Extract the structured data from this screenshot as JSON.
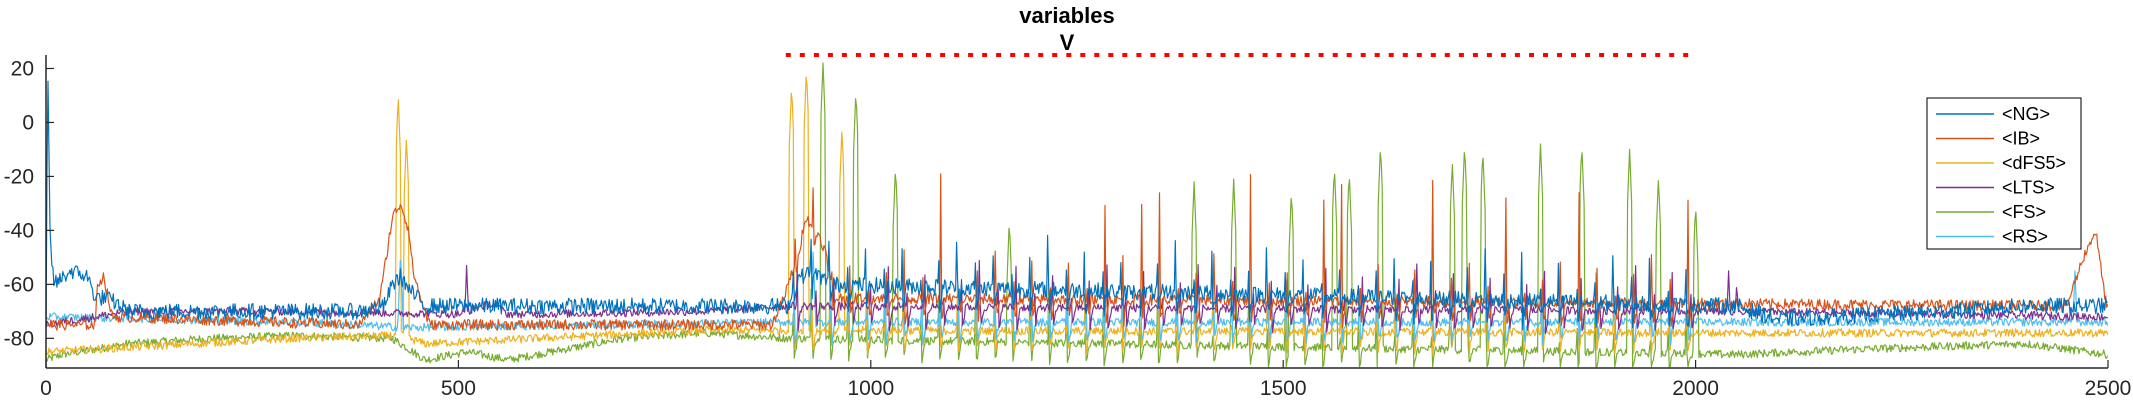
{
  "chart_data": {
    "type": "line",
    "title": "variables",
    "subtitle": "V",
    "xlabel": "",
    "ylabel": "",
    "xlim": [
      0,
      2500
    ],
    "ylim": [
      -91,
      25
    ],
    "x_ticks": [
      0,
      500,
      1000,
      1500,
      2000,
      2500
    ],
    "x_tick_labels": [
      "0",
      "500",
      "1000",
      "1500",
      "2000",
      "2500"
    ],
    "y_ticks": [
      -80,
      -60,
      -40,
      -20,
      0,
      20
    ],
    "y_tick_labels": [
      "-80",
      "-60",
      "-40",
      "-20",
      "0",
      "20"
    ],
    "grid": false,
    "legend_position": "top-right",
    "stimulus_marker": {
      "color": "#FF0000",
      "style": "dotted",
      "y": 25,
      "x_start": 900,
      "x_end": 2000,
      "spacing": 17
    },
    "series": [
      {
        "name": "<NG>",
        "color": "#0072BD",
        "baseline": -71,
        "noise": 3,
        "x": [
          0,
          2,
          5,
          10,
          30,
          50,
          60,
          70,
          80,
          100,
          380,
          410,
          420,
          430,
          440,
          460,
          900,
          905,
          910,
          930,
          950,
          2050,
          2100,
          2300,
          2400,
          2500
        ],
        "y": [
          -80,
          22,
          -45,
          -60,
          -55,
          -57,
          -65,
          -65,
          -66,
          -70,
          -70,
          -68,
          -60,
          -57,
          -62,
          -68,
          -68,
          -62,
          -58,
          -55,
          -60,
          -68,
          -73,
          -70,
          -68,
          -68
        ]
      },
      {
        "name": "<IB>",
        "color": "#D95319",
        "baseline": -75,
        "noise": 2,
        "x": [
          0,
          60,
          62,
          70,
          80,
          380,
          405,
          415,
          420,
          430,
          440,
          445,
          455,
          465,
          880,
          895,
          905,
          915,
          920,
          935,
          945,
          955,
          2450,
          2470,
          2485,
          2495,
          2500
        ],
        "y": [
          -75,
          -75,
          -60,
          -57,
          -72,
          -75,
          -65,
          -45,
          -35,
          -30,
          -40,
          -55,
          -66,
          -75,
          -75,
          -65,
          -55,
          -45,
          -35,
          -40,
          -48,
          -65,
          -68,
          -50,
          -40,
          -62,
          -70
        ]
      },
      {
        "name": "<dFS5>",
        "color": "#EDB120",
        "baseline": -78,
        "noise": 1.5,
        "x": [
          0,
          300,
          420,
          430,
          440,
          460,
          800,
          900,
          2050,
          2500
        ],
        "y": [
          -85,
          -80,
          -79,
          -78,
          -80,
          -82,
          -77,
          -77,
          -78,
          -78
        ],
        "spikes": [
          [
            427,
            10
          ],
          [
            437,
            -5
          ],
          [
            904,
            14
          ],
          [
            922,
            20
          ],
          [
            965,
            -2
          ]
        ]
      },
      {
        "name": "<LTS>",
        "color": "#7E2F8E",
        "baseline": -70,
        "noise": 1.5,
        "x": [
          0,
          60,
          100,
          300,
          500,
          540,
          560,
          600,
          800,
          900,
          2050,
          2500
        ],
        "y": [
          -75,
          -72,
          -70,
          -70,
          -71,
          -67,
          -71,
          -71,
          -70,
          -68,
          -70,
          -72
        ],
        "spikes": [
          [
            510,
            -53
          ],
          [
            2040,
            -55
          ],
          [
            2050,
            -58
          ]
        ]
      },
      {
        "name": "<FS>",
        "color": "#77AC30",
        "baseline": -84,
        "noise": 1.5,
        "x": [
          0,
          20,
          100,
          200,
          300,
          420,
          460,
          510,
          560,
          700,
          800,
          900,
          2050,
          2200,
          2400,
          2500
        ],
        "y": [
          -88,
          -86,
          -82,
          -80,
          -79,
          -80,
          -88,
          -85,
          -88,
          -80,
          -78,
          -80,
          -86,
          -84,
          -82,
          -86
        ],
        "spikes": [
          [
            942,
            22
          ],
          [
            982,
            12
          ],
          [
            1030,
            -16
          ],
          [
            1168,
            -36
          ],
          [
            1392,
            -22
          ],
          [
            1440,
            -21
          ],
          [
            1510,
            -25
          ],
          [
            1562,
            -16
          ],
          [
            1580,
            -18
          ],
          [
            1618,
            -8
          ],
          [
            1705,
            -14
          ],
          [
            1720,
            -8
          ],
          [
            1742,
            -10
          ],
          [
            1812,
            -8
          ],
          [
            1862,
            -8
          ],
          [
            1920,
            -10
          ],
          [
            1955,
            -20
          ],
          [
            2000,
            -30
          ]
        ]
      },
      {
        "name": "<RS>",
        "color": "#4DBEEE",
        "baseline": -74,
        "noise": 1.5,
        "x": [
          0,
          300,
          440,
          900,
          2050,
          2500
        ],
        "y": [
          -72,
          -74,
          -76,
          -74,
          -74,
          -74
        ],
        "spikes": [
          [
            430,
            -48
          ],
          [
            930,
            -48
          ],
          [
            2460,
            -55
          ]
        ]
      }
    ],
    "burst_region": {
      "start": 905,
      "end": 2010,
      "events": 50
    }
  }
}
